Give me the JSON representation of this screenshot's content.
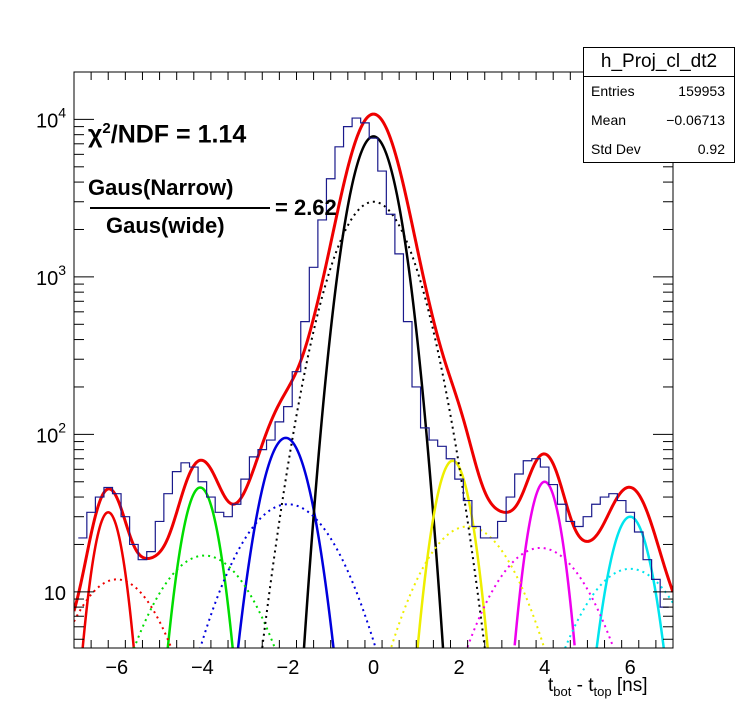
{
  "chart_data": {
    "type": "line",
    "title": "",
    "xlabel_main": "t",
    "xlabel_sub1": "bot",
    "xlabel_mid": " - t",
    "xlabel_sub2": "top",
    "xlabel_unit": " [ns]",
    "ylabel": "",
    "yscale": "log",
    "xlim": [
      -7,
      7
    ],
    "ylim": [
      4.4,
      20000
    ],
    "x_ticks": [
      -6,
      -4,
      -2,
      0,
      2,
      4,
      6
    ],
    "x_tick_labels": [
      "−6",
      "−4",
      "−2",
      "0",
      "2",
      "4",
      "6"
    ],
    "y_major_ticks": [
      10,
      100,
      1000,
      10000
    ],
    "y_tick_labels": [
      {
        "base": "10",
        "exp": ""
      },
      {
        "base": "10",
        "exp": "2"
      },
      {
        "base": "10",
        "exp": "3"
      },
      {
        "base": "10",
        "exp": "4"
      }
    ],
    "histogram": {
      "color": "#1a1a8c",
      "x": [
        -6.8,
        -6.6,
        -6.4,
        -6.2,
        -6.0,
        -5.8,
        -5.6,
        -5.4,
        -5.2,
        -5.0,
        -4.8,
        -4.6,
        -4.4,
        -4.2,
        -4.0,
        -3.8,
        -3.6,
        -3.4,
        -3.2,
        -3.0,
        -2.8,
        -2.6,
        -2.4,
        -2.2,
        -2.0,
        -1.8,
        -1.6,
        -1.4,
        -1.2,
        -1.0,
        -0.8,
        -0.6,
        -0.4,
        -0.2,
        0.0,
        0.2,
        0.4,
        0.6,
        0.8,
        1.0,
        1.2,
        1.4,
        1.6,
        1.8,
        2.0,
        2.2,
        2.4,
        2.6,
        2.8,
        3.0,
        3.2,
        3.4,
        3.6,
        3.8,
        4.0,
        4.2,
        4.4,
        4.6,
        4.8,
        5.0,
        5.2,
        5.4,
        5.6,
        5.8,
        6.0,
        6.2,
        6.4,
        6.6,
        6.8
      ],
      "y": [
        22,
        32,
        40,
        46,
        42,
        30,
        20,
        16,
        18,
        28,
        42,
        58,
        66,
        62,
        50,
        40,
        32,
        30,
        36,
        52,
        72,
        80,
        92,
        120,
        150,
        250,
        520,
        1150,
        2300,
        4200,
        6700,
        9000,
        10200,
        9500,
        7600,
        4700,
        2500,
        1400,
        520,
        200,
        110,
        92,
        84,
        70,
        52,
        38,
        26,
        22,
        22,
        28,
        40,
        56,
        68,
        70,
        62,
        48,
        36,
        28,
        26,
        30,
        36,
        40,
        42,
        38,
        32,
        24,
        16,
        12,
        8
      ]
    },
    "series": [
      {
        "name": "",
        "style": "total",
        "color": "#ee0000",
        "components": [
          [
            0.035,
            42,
            -6.2,
            0.2,
            0
          ],
          [
            0.035,
            66,
            -4.1,
            0.2,
            0
          ],
          [
            0.035,
            80,
            -2.2,
            0.2,
            0
          ],
          [
            0.035,
            70,
            1.9,
            0.2,
            0
          ],
          [
            0.035,
            66,
            4.05,
            0.2,
            0
          ],
          [
            0.035,
            38,
            5.95,
            0.2,
            0
          ],
          [
            0,
            8000,
            0,
            0.4,
            0
          ],
          [
            0,
            3000,
            0,
            0.6,
            0
          ]
        ]
      },
      {
        "name": "",
        "style": "solid",
        "color": "#ee0000",
        "mean": -6.2,
        "sigma": 0.3,
        "amp": 32
      },
      {
        "name": "",
        "style": "solid",
        "color": "#00dd00",
        "mean": -4.05,
        "sigma": 0.35,
        "amp": 46
      },
      {
        "name": "",
        "style": "solid",
        "color": "#0000dd",
        "mean": -2.05,
        "sigma": 0.45,
        "amp": 95
      },
      {
        "name": "",
        "style": "solid",
        "color": "#000000",
        "mean": 0.0,
        "sigma": 0.42,
        "amp": 7800
      },
      {
        "name": "",
        "style": "solid",
        "color": "#eeee00",
        "mean": 1.85,
        "sigma": 0.35,
        "amp": 68
      },
      {
        "name": "",
        "style": "solid",
        "color": "#ee00ee",
        "mean": 4.0,
        "sigma": 0.32,
        "amp": 50
      },
      {
        "name": "",
        "style": "solid",
        "color": "#00e5ee",
        "mean": 6.0,
        "sigma": 0.4,
        "amp": 30
      },
      {
        "name": "",
        "style": "dotted",
        "color": "#ee0000",
        "mean": -6.0,
        "sigma": 0.9,
        "amp": 12
      },
      {
        "name": "",
        "style": "dotted",
        "color": "#00dd00",
        "mean": -3.95,
        "sigma": 1.0,
        "amp": 17
      },
      {
        "name": "",
        "style": "dotted",
        "color": "#0000dd",
        "mean": -2.0,
        "sigma": 1.0,
        "amp": 36
      },
      {
        "name": "",
        "style": "dotted",
        "color": "#000000",
        "mean": 0.0,
        "sigma": 0.72,
        "amp": 3000
      },
      {
        "name": "",
        "style": "dotted",
        "color": "#eeee00",
        "mean": 2.2,
        "sigma": 0.95,
        "amp": 26
      },
      {
        "name": "",
        "style": "dotted",
        "color": "#ee00ee",
        "mean": 3.9,
        "sigma": 1.0,
        "amp": 19
      },
      {
        "name": "",
        "style": "dotted",
        "color": "#00e5ee",
        "mean": 6.0,
        "sigma": 1.0,
        "amp": 14
      }
    ],
    "grid": false,
    "legend": "none"
  },
  "stats": {
    "title": "h_Proj_cl_dt2",
    "rows": [
      {
        "label": "Entries",
        "value": "159953"
      },
      {
        "label": "Mean",
        "value": "−0.06713"
      },
      {
        "label": "Std Dev",
        "value": "0.92"
      }
    ]
  },
  "annotations": {
    "chi_symbol": "χ",
    "chi_exp": "2",
    "chi_text": "/NDF = 1.14",
    "ratio_numerator": "Gaus(Narrow)",
    "ratio_denominator": "Gaus(wide)",
    "ratio_value": "= 2.62"
  }
}
